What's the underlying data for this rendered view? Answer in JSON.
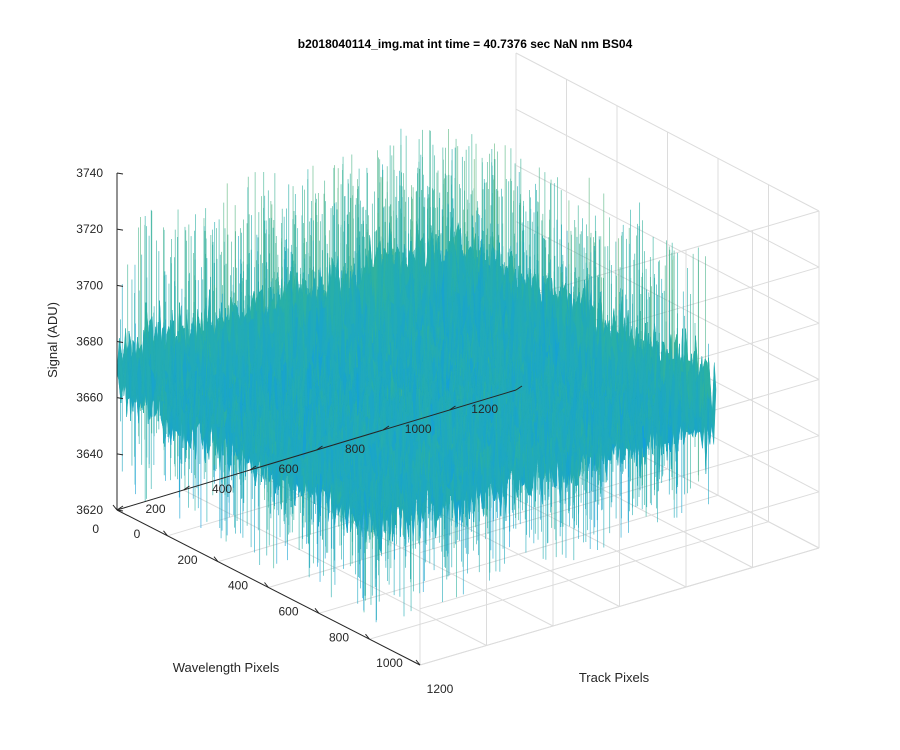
{
  "chart_data": {
    "type": "surface",
    "title": "b2018040114_img.mat int time = 40.7376 sec   NaN nm BS04",
    "xlabel": "Track Pixels",
    "ylabel": "Wavelength Pixels",
    "zlabel": "Signal (ADU)",
    "xlim": [
      0,
      1200
    ],
    "ylim": [
      0,
      1200
    ],
    "zlim": [
      3620,
      3740
    ],
    "xticks": [
      "0",
      "200",
      "400",
      "600",
      "800",
      "1000",
      "1200"
    ],
    "yticks": [
      "0",
      "200",
      "400",
      "600",
      "800",
      "1000",
      "1200"
    ],
    "zticks": [
      "3620",
      "3640",
      "3660",
      "3680",
      "3700",
      "3720",
      "3740"
    ],
    "data_extent": {
      "x": [
        0,
        1024
      ],
      "y": [
        0,
        1024
      ]
    },
    "signal_summary": {
      "mean": 3670,
      "min": 3625,
      "max": 3730
    },
    "grid": true,
    "colormap": "parula",
    "colors": {
      "low": "#0a5bd6",
      "mid_low": "#129fdc",
      "mid": "#2ab1a3",
      "mid_high": "#7dbb6a",
      "high": "#c7b83d"
    }
  }
}
